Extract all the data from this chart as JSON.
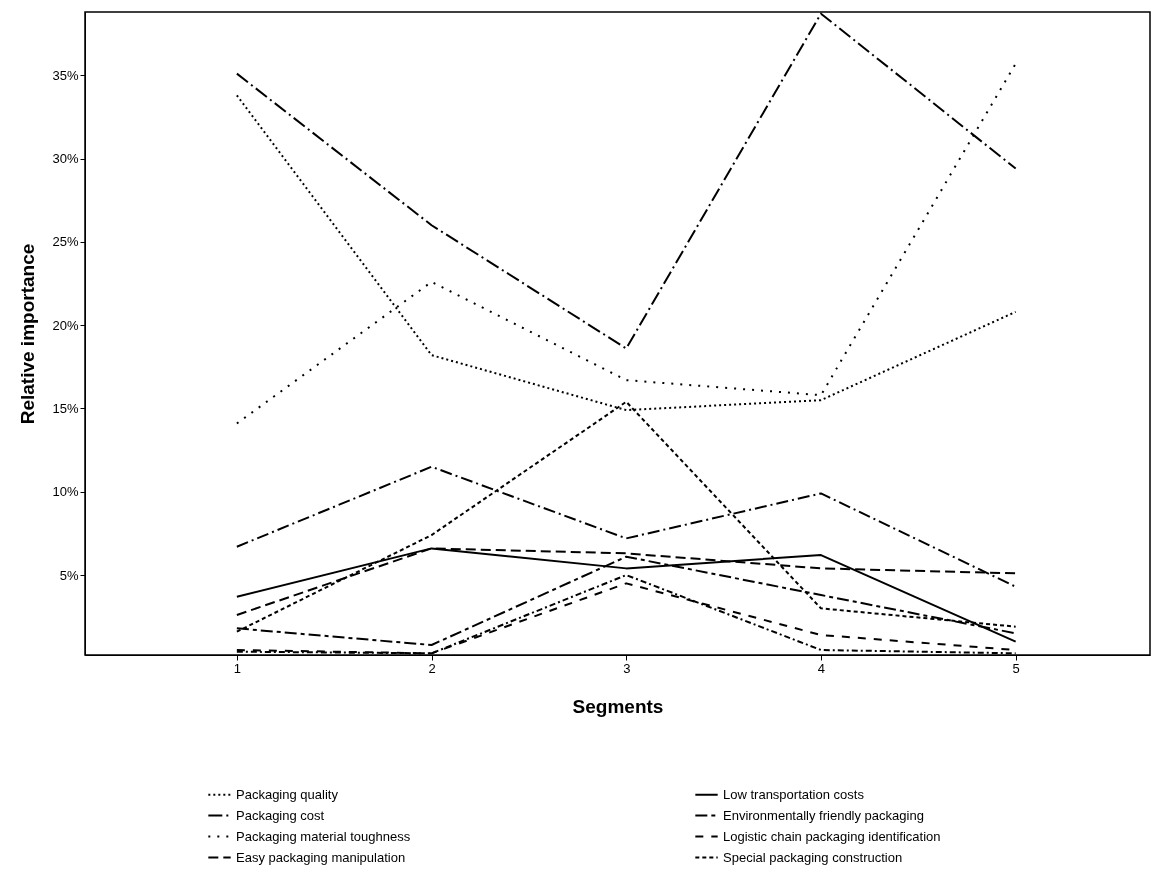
{
  "chart_data": {
    "type": "line",
    "xlabel": "Segments",
    "ylabel": "Relative importance",
    "x": [
      1,
      2,
      3,
      4,
      5
    ],
    "xlim": [
      0.22,
      5.69
    ],
    "xticks": [
      1,
      2,
      3,
      4,
      5
    ],
    "ylim": [
      0.2,
      38.8
    ],
    "yticks": [
      {
        "value": 5,
        "label": "5%"
      },
      {
        "value": 10,
        "label": "10%"
      },
      {
        "value": 15,
        "label": "15%"
      },
      {
        "value": 20,
        "label": "20%"
      },
      {
        "value": 25,
        "label": "25%"
      },
      {
        "value": 30,
        "label": "30%"
      },
      {
        "value": 35,
        "label": "35%"
      }
    ],
    "grid": false,
    "legend": "bottom",
    "marker": "none",
    "series": [
      {
        "name": "Packaging quality",
        "color": "#000000",
        "line_style": "dotted",
        "values": [
          33.8,
          18.2,
          14.9,
          15.5,
          20.8
        ]
      },
      {
        "name": "Packaging cost",
        "color": "#000000",
        "line_style": "dashed",
        "values": [
          35.1,
          26.0,
          18.6,
          38.7,
          29.4
        ]
      },
      {
        "name": "Packaging material toughness",
        "color": "#000000",
        "line_style": "dotted",
        "values": [
          14.1,
          22.6,
          16.7,
          15.8,
          35.7
        ]
      },
      {
        "name": "Easy packaging manipulation",
        "color": "#000000",
        "line_style": "dashed",
        "values": [
          2.6,
          6.6,
          6.3,
          5.4,
          5.1
        ]
      },
      {
        "name": "Low transportation costs",
        "color": "#000000",
        "line_style": "solid",
        "values": [
          3.7,
          6.6,
          5.4,
          6.2,
          1.0
        ]
      },
      {
        "name": "Environmentally friendly packaging",
        "color": "#000000",
        "line_style": "dashed",
        "values": [
          1.8,
          0.8,
          6.1,
          3.8,
          1.5
        ]
      },
      {
        "name": "Logistic chain packaging identification",
        "color": "#000000",
        "line_style": "dashed",
        "values": [
          0.5,
          0.3,
          4.5,
          1.4,
          0.5
        ]
      },
      {
        "name": "Special packaging construction",
        "color": "#000000",
        "line_style": "dashed",
        "values": [
          1.6,
          7.4,
          15.4,
          3.0,
          1.9
        ]
      },
      {
        "color": "#000000",
        "line_style": "dashed",
        "values": [
          6.7,
          11.5,
          7.2,
          9.9,
          4.3
        ]
      },
      {
        "color": "#000000",
        "line_style": "dashed",
        "values": [
          0.4,
          0.3,
          5.0,
          0.5,
          0.3
        ]
      }
    ]
  }
}
